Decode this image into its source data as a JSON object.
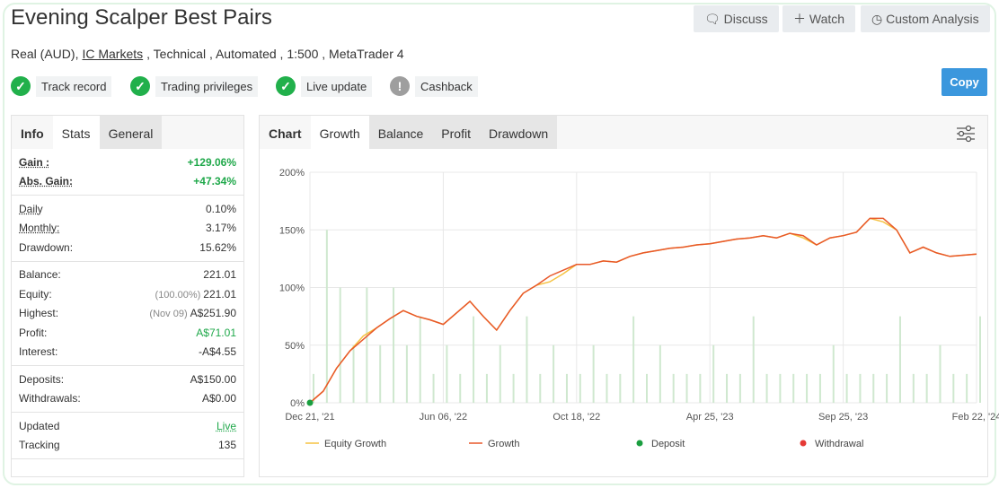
{
  "header": {
    "title": "Evening Scalper Best Pairs",
    "buttons": [
      "Discuss",
      "Watch",
      "Custom Analysis"
    ],
    "subtitle": {
      "before": "Real (AUD),",
      "link": "IC Markets",
      "after": ", Technical , Automated , 1:500 , MetaTrader 4"
    },
    "badges": [
      {
        "label": "Track record",
        "status": "ok"
      },
      {
        "label": "Trading privileges",
        "status": "ok"
      },
      {
        "label": "Live update",
        "status": "ok"
      },
      {
        "label": "Cashback",
        "status": "info"
      }
    ],
    "copy": "Copy"
  },
  "stats": {
    "tabs": [
      "Info",
      "Stats",
      "General"
    ],
    "active_tab": 1,
    "groups": [
      [
        {
          "label": "Gain :",
          "value": "+129.06%",
          "color": "#1fa84a",
          "bold": true,
          "underline": true
        },
        {
          "label": "Abs. Gain:",
          "value": "+47.34%",
          "color": "#1fa84a",
          "bold": true,
          "underline": true
        }
      ],
      [
        {
          "label": "Daily",
          "value": "0.10%",
          "underline": true
        },
        {
          "label": "Monthly:",
          "value": "3.17%",
          "underline": true
        },
        {
          "label": "Drawdown:",
          "value": "15.62%"
        }
      ],
      [
        {
          "label": "Balance:",
          "value": "221.01"
        },
        {
          "label": "Equity:",
          "note": "(100.00%)",
          "value": "221.01"
        },
        {
          "label": "Highest:",
          "note": "(Nov 09)",
          "value": "A$251.90"
        },
        {
          "label": "Profit:",
          "value": "A$71.01",
          "color": "#1fa84a"
        },
        {
          "label": "Interest:",
          "value": "-A$4.55"
        }
      ],
      [
        {
          "label": "Deposits:",
          "value": "A$150.00"
        },
        {
          "label": "Withdrawals:",
          "value": "A$0.00"
        }
      ],
      [
        {
          "label": "Updated",
          "value": "Live",
          "color": "#1fa84a",
          "value_underline": true
        },
        {
          "label": "Tracking",
          "value": "135"
        }
      ]
    ]
  },
  "chart_panel": {
    "tabs": [
      "Chart",
      "Growth",
      "Balance",
      "Profit",
      "Drawdown"
    ],
    "active_tab": 1
  },
  "chart_data": {
    "type": "line",
    "grid": true,
    "x": [
      0,
      2,
      4,
      6,
      8,
      10,
      12,
      14,
      16,
      18,
      20,
      22,
      24,
      26,
      28,
      30,
      32,
      34,
      36,
      38,
      40,
      42,
      44,
      46,
      48,
      50,
      52,
      54,
      56,
      58,
      60,
      62,
      64,
      66,
      68,
      70,
      72,
      74,
      76,
      78,
      80,
      82,
      84,
      86,
      88,
      90,
      92,
      94,
      96,
      98,
      100
    ],
    "xlim": [
      0,
      100
    ],
    "xticks": [
      {
        "value": 0,
        "label": "Dec 21, '21"
      },
      {
        "value": 20,
        "label": "Jun 06, '22"
      },
      {
        "value": 40,
        "label": "Oct 18, '22"
      },
      {
        "value": 60,
        "label": "Apr 25, '23"
      },
      {
        "value": 80,
        "label": "Sep 25, '23"
      },
      {
        "value": 100,
        "label": "Feb 22, '24"
      }
    ],
    "ylim": [
      0,
      200
    ],
    "yticks": [
      {
        "value": 0,
        "label": "0%"
      },
      {
        "value": 50,
        "label": "50%"
      },
      {
        "value": 100,
        "label": "100%"
      },
      {
        "value": 150,
        "label": "150%"
      },
      {
        "value": 200,
        "label": "200%"
      }
    ],
    "bars": {
      "color": "#cfe8cf",
      "values": [
        25,
        150,
        100,
        50,
        100,
        50,
        100,
        50,
        75,
        25,
        50,
        25,
        75,
        25,
        50,
        25,
        75,
        25,
        50,
        25,
        25,
        50,
        25,
        25,
        75,
        25,
        50,
        25,
        25,
        25,
        50,
        25,
        25,
        75,
        25,
        25,
        25,
        25,
        25,
        50,
        25,
        25,
        25,
        25,
        75,
        25,
        25,
        50,
        25,
        25,
        75
      ]
    },
    "series": [
      {
        "name": "Equity Growth",
        "color": "#f5c242",
        "values": [
          0,
          10,
          30,
          45,
          58,
          65,
          73,
          80,
          75,
          72,
          68,
          78,
          88,
          75,
          63,
          80,
          95,
          102,
          105,
          112,
          120,
          120,
          123,
          122,
          127,
          130,
          132,
          134,
          135,
          137,
          138,
          140,
          142,
          143,
          145,
          143,
          147,
          143,
          137,
          143,
          145,
          148,
          160,
          157,
          150,
          130,
          135,
          130,
          127,
          128,
          129
        ]
      },
      {
        "name": "Growth",
        "color": "#e8582a",
        "values": [
          0,
          10,
          30,
          45,
          55,
          65,
          73,
          80,
          75,
          72,
          68,
          78,
          88,
          75,
          63,
          80,
          95,
          102,
          110,
          115,
          120,
          120,
          123,
          122,
          127,
          130,
          132,
          134,
          135,
          137,
          138,
          140,
          142,
          143,
          145,
          143,
          147,
          145,
          137,
          143,
          145,
          148,
          160,
          160,
          150,
          130,
          135,
          130,
          127,
          128,
          129
        ]
      }
    ],
    "markers": [
      {
        "name": "Deposit",
        "color": "#1a9e3f",
        "x": [
          0
        ],
        "y": [
          0
        ]
      },
      {
        "name": "Withdrawal",
        "color": "#e53935",
        "x": [],
        "y": []
      }
    ]
  }
}
